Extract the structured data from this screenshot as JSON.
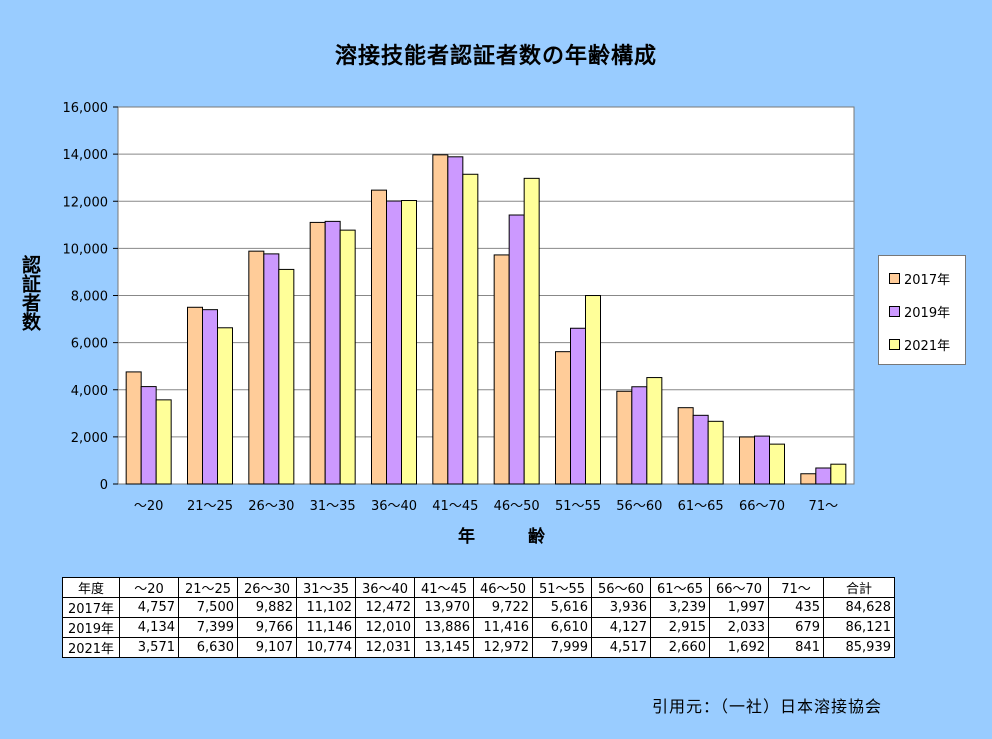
{
  "chart_data": {
    "type": "bar",
    "title": "溶接技能者認証者数の年齢構成",
    "xlabel": "年　齢",
    "ylabel": "認証者数",
    "ylim": [
      0,
      16000
    ],
    "yticks": [
      "0",
      "2,000",
      "4,000",
      "6,000",
      "8,000",
      "10,000",
      "12,000",
      "14,000",
      "16,000"
    ],
    "ytick_values": [
      0,
      2000,
      4000,
      6000,
      8000,
      10000,
      12000,
      14000,
      16000
    ],
    "grid": true,
    "legend_position": "right",
    "categories": [
      "～20",
      "21～25",
      "26～30",
      "31～35",
      "36～40",
      "41～45",
      "46～50",
      "51～55",
      "56～60",
      "61～65",
      "66～70",
      "71～"
    ],
    "series": [
      {
        "name": "2017年",
        "color": "#ffcc99",
        "values": [
          4757,
          7500,
          9882,
          11102,
          12472,
          13970,
          9722,
          5616,
          3936,
          3239,
          1997,
          435
        ]
      },
      {
        "name": "2019年",
        "color": "#cc99ff",
        "values": [
          4134,
          7399,
          9766,
          11146,
          12010,
          13886,
          11416,
          6610,
          4127,
          2915,
          2033,
          679
        ]
      },
      {
        "name": "2021年",
        "color": "#ffff99",
        "values": [
          3571,
          6630,
          9107,
          10774,
          12031,
          13145,
          12972,
          7999,
          4517,
          2660,
          1692,
          841
        ]
      }
    ]
  },
  "table": {
    "header": [
      "年度",
      "～20",
      "21～25",
      "26～30",
      "31～35",
      "36～40",
      "41～45",
      "46～50",
      "51～55",
      "56～60",
      "61～65",
      "66～70",
      "71～",
      "合計"
    ],
    "rows": [
      [
        "2017年",
        "4,757",
        "7,500",
        "9,882",
        "11,102",
        "12,472",
        "13,970",
        "9,722",
        "5,616",
        "3,936",
        "3,239",
        "1,997",
        "435",
        "84,628"
      ],
      [
        "2019年",
        "4,134",
        "7,399",
        "9,766",
        "11,146",
        "12,010",
        "13,886",
        "11,416",
        "6,610",
        "4,127",
        "2,915",
        "2,033",
        "679",
        "86,121"
      ],
      [
        "2021年",
        "3,571",
        "6,630",
        "9,107",
        "10,774",
        "12,031",
        "13,145",
        "12,972",
        "7,999",
        "4,517",
        "2,660",
        "1,692",
        "841",
        "85,939"
      ]
    ]
  },
  "source": "引用元：（一社）日本溶接協会"
}
